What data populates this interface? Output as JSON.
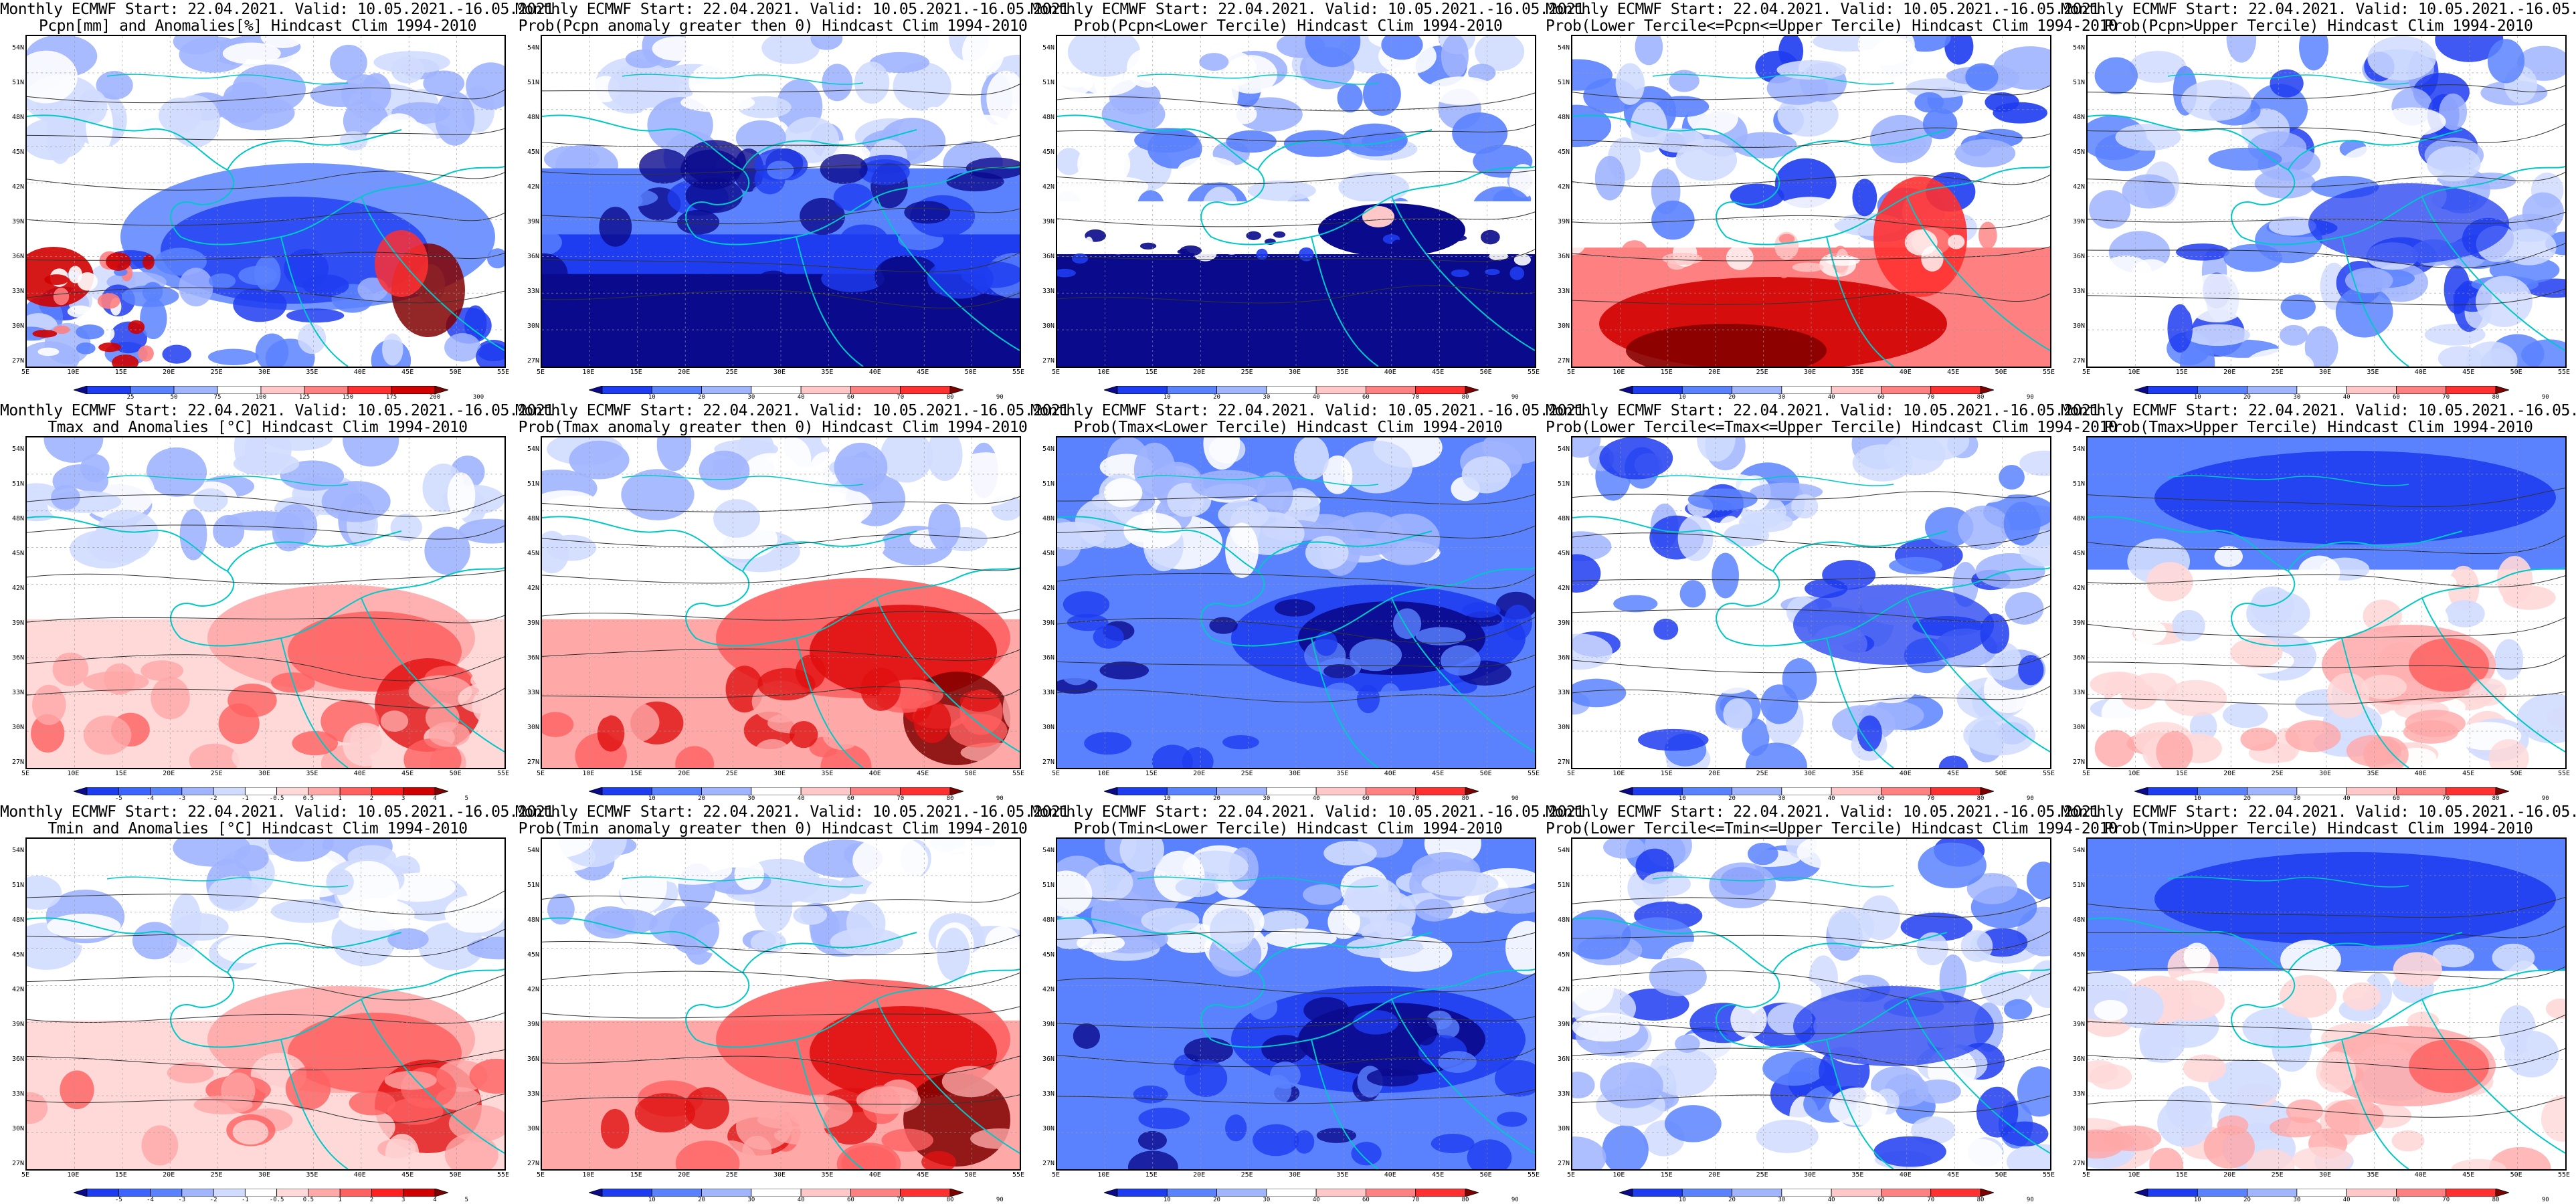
{
  "title_prefix": "Monthly ECMWF Start: 22.04.2021. Valid: 10.05.2021.-16.05.2021.",
  "lat_labels": [
    "54N",
    "51N",
    "48N",
    "45N",
    "42N",
    "39N",
    "36N",
    "33N",
    "30N",
    "27N"
  ],
  "lon_labels": [
    "5E",
    "10E",
    "15E",
    "20E",
    "25E",
    "30E",
    "35E",
    "40E",
    "45E",
    "50E",
    "55E"
  ],
  "colorbars": {
    "pcpn_anom": {
      "labels": [
        "25",
        "50",
        "75",
        "100",
        "125",
        "150",
        "175",
        "200",
        "300"
      ],
      "colors": [
        "#0a0a8c",
        "#1e3cf0",
        "#5a82ff",
        "#a0b4ff",
        "#ffffff",
        "#ffc8c8",
        "#ff8080",
        "#ff3030",
        "#d00000",
        "#800000"
      ]
    },
    "prob": {
      "labels": [
        "10",
        "20",
        "30",
        "40",
        "60",
        "70",
        "80",
        "90"
      ],
      "colors": [
        "#0a0a8c",
        "#1e3cf0",
        "#5a82ff",
        "#a0b4ff",
        "#ffffff",
        "#ffc8c8",
        "#ff8080",
        "#ff3030",
        "#800000"
      ]
    },
    "temp_anom": {
      "labels": [
        "-5",
        "-4",
        "-3",
        "-2",
        "-1",
        "-0.5",
        "0.5",
        "1",
        "2",
        "3",
        "4",
        "5"
      ],
      "colors": [
        "#0a0a8c",
        "#1e3cf0",
        "#3c64ff",
        "#5a82ff",
        "#a0b4ff",
        "#d0dcff",
        "#ffffff",
        "#ffd8d8",
        "#ffa8a8",
        "#ff6060",
        "#ff2020",
        "#d00000",
        "#800000"
      ]
    }
  },
  "panels": [
    {
      "id": "pcpn-anomalies",
      "subtitle": "Pcpn[mm] and Anomalies[%] Hindcast Clim 1994-2010",
      "cbar": "pcpn_anom",
      "pattern": "pcpn_anom"
    },
    {
      "id": "pcpn-prob-gt0",
      "subtitle": "Prob(Pcpn anomaly greater then 0) Hindcast Clim 1994-2010",
      "cbar": "prob",
      "pattern": "blue_south"
    },
    {
      "id": "pcpn-prob-lower",
      "subtitle": "Prob(Pcpn<Lower Tercile) Hindcast Clim 1994-2010",
      "cbar": "prob",
      "pattern": "blue_south_white"
    },
    {
      "id": "pcpn-prob-middle",
      "subtitle": "Prob(Lower Tercile<=Pcpn<=Upper Tercile) Hindcast Clim 1994-2010",
      "cbar": "prob",
      "pattern": "red_south"
    },
    {
      "id": "pcpn-prob-upper",
      "subtitle": "Prob(Pcpn>Upper Tercile) Hindcast Clim 1994-2010",
      "cbar": "prob",
      "pattern": "blue_mixed"
    },
    {
      "id": "tmax-anomalies",
      "subtitle": "Tmax and Anomalies [°C] Hindcast Clim 1994-2010",
      "cbar": "temp_anom",
      "pattern": "red_east"
    },
    {
      "id": "tmax-prob-gt0",
      "subtitle": "Prob(Tmax anomaly greater then 0) Hindcast Clim 1994-2010",
      "cbar": "prob",
      "pattern": "red_east_strong"
    },
    {
      "id": "tmax-prob-lower",
      "subtitle": "Prob(Tmax<Lower Tercile) Hindcast Clim 1994-2010",
      "cbar": "prob",
      "pattern": "blue_strong"
    },
    {
      "id": "tmax-prob-middle",
      "subtitle": "Prob(Lower Tercile<=Tmax<=Upper Tercile) Hindcast Clim 1994-2010",
      "cbar": "prob",
      "pattern": "blue_mixed"
    },
    {
      "id": "tmax-prob-upper",
      "subtitle": "Prob(Tmax>Upper Tercile) Hindcast Clim 1994-2010",
      "cbar": "prob",
      "pattern": "blue_north_red_east"
    },
    {
      "id": "tmin-anomalies",
      "subtitle": "Tmin and Anomalies [°C] Hindcast Clim 1994-2010",
      "cbar": "temp_anom",
      "pattern": "red_east"
    },
    {
      "id": "tmin-prob-gt0",
      "subtitle": "Prob(Tmin anomaly greater then 0) Hindcast Clim 1994-2010",
      "cbar": "prob",
      "pattern": "red_east_strong"
    },
    {
      "id": "tmin-prob-lower",
      "subtitle": "Prob(Tmin<Lower Tercile) Hindcast Clim 1994-2010",
      "cbar": "prob",
      "pattern": "blue_strong"
    },
    {
      "id": "tmin-prob-middle",
      "subtitle": "Prob(Lower Tercile<=Tmin<=Upper Tercile) Hindcast Clim 1994-2010",
      "cbar": "prob",
      "pattern": "blue_mixed"
    },
    {
      "id": "tmin-prob-upper",
      "subtitle": "Prob(Tmin>Upper Tercile) Hindcast Clim 1994-2010",
      "cbar": "prob",
      "pattern": "blue_north_red_east"
    }
  ]
}
